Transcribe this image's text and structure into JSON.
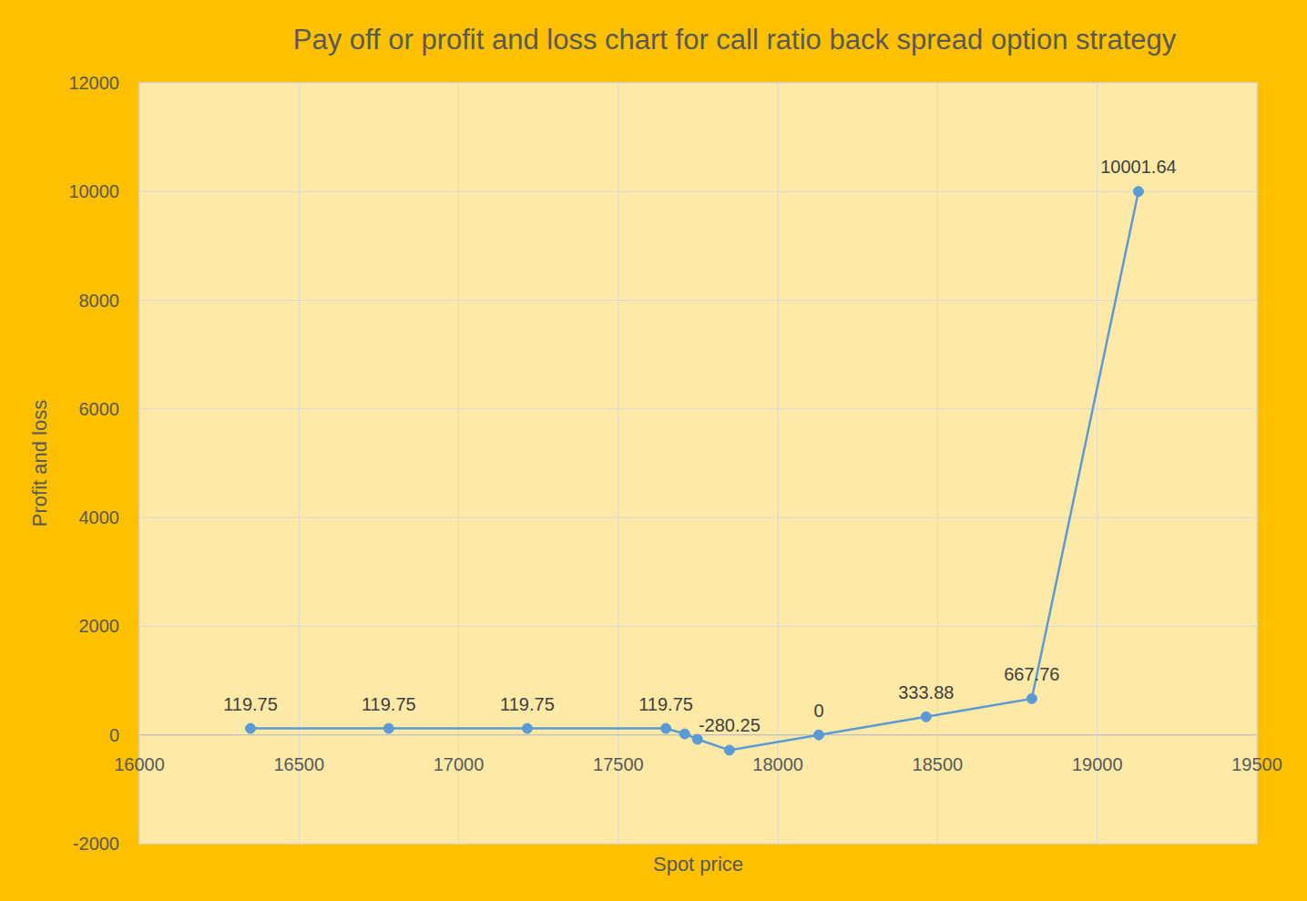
{
  "chart_data": {
    "type": "line",
    "title": "Pay off or profit and loss chart for call ratio back spread option strategy",
    "x_label": "Spot price",
    "y_label": "Profit and loss",
    "x": [
      16348,
      16781,
      17215,
      17649,
      17708,
      17748,
      17848,
      18128,
      18464,
      18795,
      19129
    ],
    "series": [
      {
        "name": "Profit and loss",
        "color": "#5B9BD5",
        "marker": "circle",
        "line_style": "solid",
        "values": [
          119.75,
          119.75,
          119.75,
          119.75,
          19.75,
          -80.25,
          -280.25,
          0,
          333.88,
          667.76,
          10001.64
        ],
        "value_labels": [
          "119.75",
          "119.75",
          "119.75",
          "119.75",
          null,
          null,
          "-280.25",
          "0",
          "333.88",
          "667.76",
          "10001.64"
        ]
      }
    ],
    "xlim": [
      16000,
      19500
    ],
    "xticks": [
      16000,
      16500,
      17000,
      17500,
      18000,
      18500,
      19000,
      19500
    ],
    "ylim": [
      -2000,
      12000
    ],
    "yticks": [
      -2000,
      0,
      2000,
      4000,
      6000,
      8000,
      10000,
      12000
    ],
    "grid": true,
    "data_labels": true
  }
}
